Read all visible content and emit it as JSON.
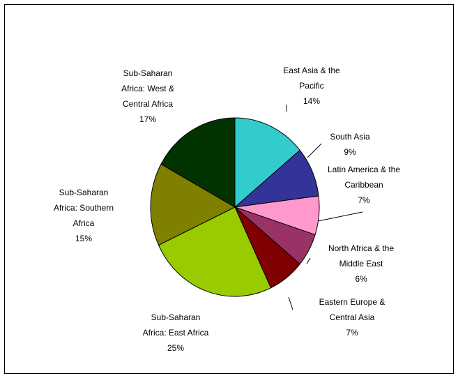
{
  "chart_data": {
    "type": "pie",
    "categories": [
      "East Asia & the\nPacific",
      "South Asia",
      "Latin America & the\nCaribbean",
      "North Africa & the\nMiddle East",
      "Eastern Europe &\nCentral Asia",
      "Sub-Saharan\nAfrica: East Africa",
      "Sub-Saharan\nAfrica: Southern\nAfrica",
      "Sub-Saharan\nAfrica: West &\nCentral Africa"
    ],
    "values": [
      14,
      9,
      7,
      6,
      7,
      25,
      15,
      17
    ],
    "value_labels": [
      "14%",
      "9%",
      "7%",
      "6%",
      "7%",
      "25%",
      "15%",
      "17%"
    ],
    "colors": [
      "#33cccc",
      "#333399",
      "#ff99cc",
      "#993366",
      "#800000",
      "#99cc00",
      "#808000",
      "#003300"
    ]
  }
}
